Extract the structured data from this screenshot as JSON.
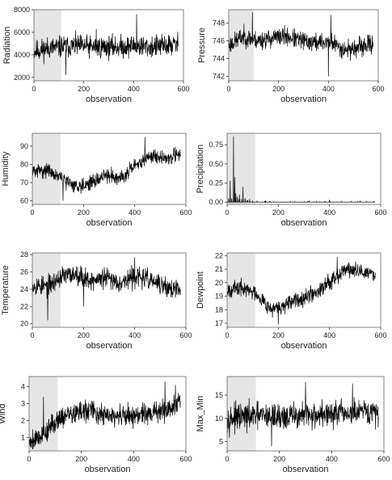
{
  "figure": {
    "background": "#ffffff",
    "line_color": "#000000",
    "shade_color": "#e6e6e6"
  },
  "chart_data": [
    {
      "type": "line",
      "ylabel": "Radiation",
      "xlabel": "observation",
      "grid": false,
      "xlim": [
        0,
        600
      ],
      "ylim": [
        1700,
        8000
      ],
      "xticks": [
        0,
        200,
        400,
        600
      ],
      "yticks": [
        2000,
        4000,
        6000,
        8000
      ],
      "shaded_x": [
        0,
        110
      ],
      "n": 580,
      "base": [
        4300,
        4600,
        4700,
        4800,
        4700,
        4700,
        4700,
        4800,
        4700,
        4800,
        4900
      ],
      "spread": 750,
      "seed": 11,
      "spikes": [
        [
          412,
          7600
        ],
        [
          128,
          2200
        ],
        [
          250,
          6300
        ]
      ]
    },
    {
      "type": "line",
      "ylabel": "Pressure",
      "xlabel": "observation",
      "grid": false,
      "xlim": [
        0,
        600
      ],
      "ylim": [
        741.5,
        749.5
      ],
      "xticks": [
        0,
        200,
        400,
        600
      ],
      "yticks": [
        742,
        744,
        746,
        748
      ],
      "shaded_x": [
        0,
        100
      ],
      "n": 580,
      "base": [
        745.5,
        746.5,
        746.0,
        746.3,
        746.5,
        746.0,
        745.8,
        745.9,
        745.0,
        745.2,
        745.7
      ],
      "spread": 0.8,
      "seed": 23,
      "spikes": [
        [
          95,
          749.2
        ],
        [
          410,
          748.9
        ],
        [
          400,
          742.0
        ]
      ]
    },
    {
      "type": "line",
      "ylabel": "Humidity",
      "xlabel": "observation",
      "grid": false,
      "xlim": [
        0,
        600
      ],
      "ylim": [
        58,
        97
      ],
      "xticks": [
        0,
        200,
        400,
        600
      ],
      "yticks": [
        60,
        70,
        80,
        90
      ],
      "shaded_x": [
        0,
        110
      ],
      "n": 580,
      "base": [
        76,
        77,
        72,
        68,
        70,
        74,
        73,
        79,
        85,
        83,
        86
      ],
      "spread": 3.0,
      "seed": 31,
      "spikes": [
        [
          440,
          95
        ],
        [
          120,
          60
        ]
      ]
    },
    {
      "type": "line",
      "ylabel": "Precipitation",
      "xlabel": "observation",
      "grid": false,
      "xlim": [
        0,
        600
      ],
      "ylim": [
        -0.03,
        0.9
      ],
      "xticks": [
        0,
        200,
        400,
        600
      ],
      "yticks": [
        0.0,
        0.25,
        0.5,
        0.75
      ],
      "yticklabels": [
        "0.00",
        "0.25",
        "0.50",
        "0.75"
      ],
      "shaded_x": [
        0,
        110
      ],
      "n": 580,
      "base": [
        0.05,
        0.03,
        0.01,
        0.0,
        0.0,
        0.0,
        0.0,
        0.0,
        0.0,
        0.0,
        0.0
      ],
      "spread": 0.0,
      "seed": 41,
      "spikes": [
        [
          12,
          0.28
        ],
        [
          18,
          0.05
        ],
        [
          25,
          0.86
        ],
        [
          30,
          0.33
        ],
        [
          34,
          0.12
        ],
        [
          40,
          0.07
        ],
        [
          48,
          0.1
        ],
        [
          56,
          0.04
        ],
        [
          62,
          0.2
        ],
        [
          70,
          0.05
        ],
        [
          88,
          0.04
        ],
        [
          150,
          0.02
        ],
        [
          320,
          0.02
        ],
        [
          400,
          0.03
        ],
        [
          520,
          0.02
        ]
      ]
    },
    {
      "type": "line",
      "ylabel": "Temperature",
      "xlabel": "observation",
      "grid": false,
      "xlim": [
        0,
        600
      ],
      "ylim": [
        19.6,
        28.2
      ],
      "xticks": [
        0,
        200,
        400,
        600
      ],
      "yticks": [
        20,
        22,
        24,
        26,
        28
      ],
      "shaded_x": [
        0,
        110
      ],
      "n": 580,
      "base": [
        24.5,
        24.3,
        25.5,
        25.8,
        25.0,
        25.3,
        24.8,
        25.5,
        25.0,
        24.2,
        23.8
      ],
      "spread": 0.9,
      "seed": 53,
      "spikes": [
        [
          60,
          20.4
        ],
        [
          400,
          27.7
        ],
        [
          200,
          22.0
        ]
      ]
    },
    {
      "type": "line",
      "ylabel": "Dewpoint",
      "xlabel": "observation",
      "grid": false,
      "xlim": [
        0,
        600
      ],
      "ylim": [
        16.7,
        22.2
      ],
      "xticks": [
        0,
        200,
        400,
        600
      ],
      "yticks": [
        17,
        18,
        19,
        20,
        21,
        22
      ],
      "shaded_x": [
        0,
        110
      ],
      "n": 580,
      "base": [
        19.5,
        19.6,
        19.2,
        18.0,
        18.3,
        18.9,
        19.3,
        20.2,
        21.0,
        20.8,
        20.6
      ],
      "spread": 0.45,
      "seed": 67,
      "spikes": [
        [
          200,
          16.9
        ],
        [
          430,
          21.9
        ]
      ]
    },
    {
      "type": "line",
      "ylabel": "Wind",
      "xlabel": "observation",
      "grid": false,
      "xlim": [
        0,
        600
      ],
      "ylim": [
        0.2,
        4.6
      ],
      "xticks": [
        0,
        200,
        400,
        600
      ],
      "yticks": [
        1,
        2,
        3,
        4
      ],
      "shaded_x": [
        0,
        110
      ],
      "n": 580,
      "base": [
        0.8,
        1.2,
        2.2,
        2.4,
        2.6,
        2.3,
        2.2,
        2.3,
        2.4,
        2.6,
        3.1
      ],
      "spread": 0.5,
      "seed": 79,
      "spikes": [
        [
          55,
          3.4
        ],
        [
          520,
          4.3
        ],
        [
          560,
          4.1
        ]
      ]
    },
    {
      "type": "line",
      "ylabel": "Max_Min",
      "xlabel": "observation",
      "grid": false,
      "xlim": [
        0,
        600
      ],
      "ylim": [
        3,
        19
      ],
      "xticks": [
        0,
        200,
        400,
        600
      ],
      "yticks": [
        5,
        10,
        15
      ],
      "shaded_x": [
        0,
        110
      ],
      "n": 580,
      "base": [
        10.0,
        10.2,
        10.5,
        10.5,
        10.3,
        10.6,
        10.8,
        10.9,
        11.0,
        11.2,
        11.0
      ],
      "spread": 2.2,
      "seed": 97,
      "spikes": [
        [
          300,
          17.8
        ],
        [
          480,
          17.5
        ],
        [
          170,
          4.0
        ]
      ]
    }
  ]
}
